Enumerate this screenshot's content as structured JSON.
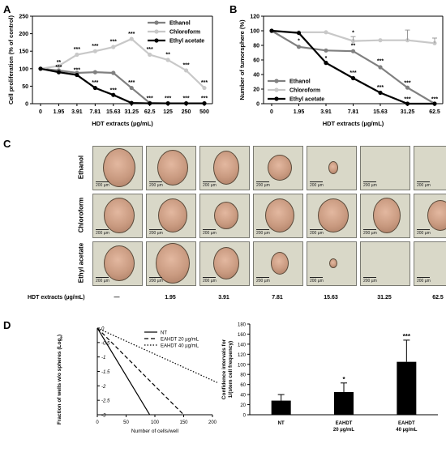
{
  "panels": {
    "A": "A",
    "B": "B",
    "C": "C",
    "D": "D"
  },
  "chart_data": [
    {
      "id": "A",
      "type": "line",
      "xlabel": "HDT extracts (µg/mL)",
      "ylabel": "Cell proliferation (% of control)",
      "categories": [
        "0",
        "1.95",
        "3.91",
        "7.81",
        "15.63",
        "31.25",
        "62.5",
        "125",
        "250",
        "500"
      ],
      "ylim": [
        0,
        250
      ],
      "yticks": [
        "0",
        "50",
        "100",
        "150",
        "200",
        "250"
      ],
      "legend_position": "top-right",
      "series": [
        {
          "name": "Ethanol",
          "color": "#808080",
          "values": [
            100,
            95,
            88,
            90,
            88,
            45,
            2,
            1,
            1,
            1
          ]
        },
        {
          "name": "Chloroform",
          "color": "#c8c8c8",
          "values": [
            100,
            108,
            140,
            150,
            162,
            185,
            140,
            125,
            95,
            45
          ]
        },
        {
          "name": "Ethyl acetate",
          "color": "#000000",
          "values": [
            100,
            90,
            82,
            45,
            25,
            2,
            1,
            1,
            1,
            1
          ]
        }
      ],
      "annotations": [
        {
          "x": 1,
          "y": 113,
          "text": "**"
        },
        {
          "x": 1,
          "y": 100,
          "text": "***"
        },
        {
          "x": 2,
          "y": 150,
          "text": "***"
        },
        {
          "x": 2,
          "y": 92,
          "text": "***"
        },
        {
          "x": 3,
          "y": 160,
          "text": "***"
        },
        {
          "x": 3,
          "y": 55,
          "text": "***"
        },
        {
          "x": 4,
          "y": 172,
          "text": "***"
        },
        {
          "x": 4,
          "y": 34,
          "text": "***"
        },
        {
          "x": 5,
          "y": 195,
          "text": "***"
        },
        {
          "x": 5,
          "y": 55,
          "text": "***"
        },
        {
          "x": 6,
          "y": 150,
          "text": "***"
        },
        {
          "x": 6,
          "y": 10,
          "text": "***"
        },
        {
          "x": 7,
          "y": 135,
          "text": "**"
        },
        {
          "x": 7,
          "y": 10,
          "text": "***"
        },
        {
          "x": 8,
          "y": 105,
          "text": "***"
        },
        {
          "x": 8,
          "y": 10,
          "text": "***"
        },
        {
          "x": 9,
          "y": 55,
          "text": "***"
        },
        {
          "x": 9,
          "y": 10,
          "text": "***"
        }
      ]
    },
    {
      "id": "B",
      "type": "line",
      "xlabel": "HDT extracts (µg/mL)",
      "ylabel": "Number of tumorsphere (%)",
      "categories": [
        "0",
        "1.95",
        "3.91",
        "7.81",
        "15.63",
        "31.25",
        "62.5"
      ],
      "ylim": [
        0,
        120
      ],
      "yticks": [
        "0",
        "20",
        "40",
        "60",
        "80",
        "100",
        "120"
      ],
      "legend_position": "bottom-left",
      "series": [
        {
          "name": "Ethanol",
          "color": "#808080",
          "values": [
            100,
            78,
            73,
            72,
            50,
            22,
            0
          ]
        },
        {
          "name": "Chloroform",
          "color": "#c8c8c8",
          "values": [
            100,
            98,
            98,
            86,
            87,
            87,
            83
          ]
        },
        {
          "name": "Ethyl acetate",
          "color": "#000000",
          "values": [
            100,
            97,
            56,
            35,
            15,
            0,
            0
          ]
        }
      ],
      "annotations": [
        {
          "x": 1,
          "y": 84,
          "text": "*"
        },
        {
          "x": 2,
          "y": 60,
          "text": "*"
        },
        {
          "x": 3,
          "y": 95,
          "text": "*"
        },
        {
          "x": 3,
          "y": 77,
          "text": "**"
        },
        {
          "x": 3,
          "y": 40,
          "text": "***"
        },
        {
          "x": 4,
          "y": 56,
          "text": "***"
        },
        {
          "x": 4,
          "y": 20,
          "text": "***"
        },
        {
          "x": 5,
          "y": 26,
          "text": "***"
        },
        {
          "x": 5,
          "y": 4,
          "text": "***"
        },
        {
          "x": 6,
          "y": 4,
          "text": "***"
        }
      ]
    },
    {
      "id": "D-left",
      "type": "line",
      "xlabel": "Number of cells/well",
      "ylabel": "Fraction of wells w/o spheres (Log",
      "ylabel_sub": "e",
      "xlim": [
        0,
        200
      ],
      "xticks": [
        "0",
        "50",
        "100",
        "150",
        "200"
      ],
      "ylim": [
        -3,
        0
      ],
      "yticks": [
        "0",
        "-0.5",
        "-1",
        "-1.5",
        "-2",
        "-2.5",
        "-3"
      ],
      "legend_position": "top-right",
      "series": [
        {
          "name": "NT",
          "style": "solid",
          "x": [
            0,
            91
          ],
          "y": [
            0,
            -3
          ]
        },
        {
          "name": "EAHDT 20 µg/mL",
          "style": "dashed",
          "x": [
            0,
            150
          ],
          "y": [
            0,
            -3
          ]
        },
        {
          "name": "EAHDT 40 µg/mL",
          "style": "dotted",
          "x": [
            0,
            210
          ],
          "y": [
            0,
            -1.9
          ]
        }
      ]
    },
    {
      "id": "D-right",
      "type": "bar",
      "ylabel": "Confidence intervals for 1/(stem cell frequency)",
      "ylabel_line1": "Confidence intervals for",
      "ylabel_line2": "1/(stem cell frequency)",
      "categories": [
        {
          "line1": "NT",
          "line2": ""
        },
        {
          "line1": "EAHDT",
          "line2": "20 µg/mL"
        },
        {
          "line1": "EAHDT",
          "line2": "40 µg/mL"
        }
      ],
      "values": [
        28,
        45,
        105
      ],
      "errors": [
        12,
        18,
        43
      ],
      "significance": [
        "",
        "*",
        "***"
      ],
      "ylim": [
        0,
        180
      ],
      "yticks": [
        "0",
        "20",
        "40",
        "60",
        "80",
        "100",
        "120",
        "140",
        "160",
        "180"
      ]
    }
  ],
  "images": {
    "rows": [
      "Ethanol",
      "Chloroform",
      "Ethyl acetate"
    ],
    "scale_label": "200 µm",
    "axis_label": "HDT extracts (µg/mL)",
    "columns": [
      "—",
      "1.95",
      "3.91",
      "7.81",
      "15.63",
      "31.25",
      "62.5"
    ]
  }
}
